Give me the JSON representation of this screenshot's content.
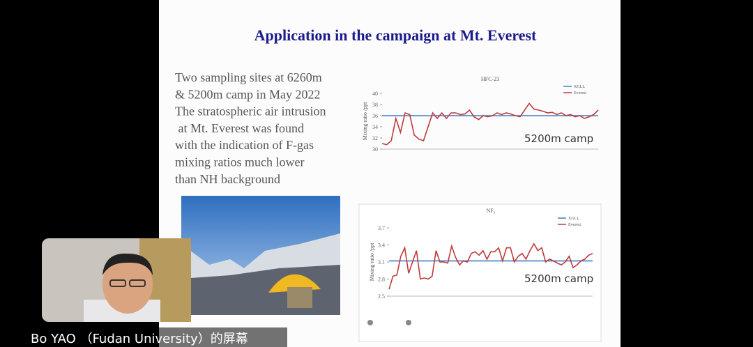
{
  "slide": {
    "title": "Application in the campaign at Mt. Everest",
    "body": [
      "Two sampling sites at 6260m",
      "& 5200m camp in May 2022",
      "The stratospheric air intrusion",
      " at Mt. Everest was found",
      "with the indication of F-gas",
      "mixing ratios much lower",
      "than NH background"
    ]
  },
  "chart_data": [
    {
      "type": "line",
      "title": "HFC-23",
      "ylabel": "Mixing ratio /ppt",
      "annotation": "5200m camp",
      "ylim": [
        30,
        40
      ],
      "yticks": [
        30,
        32,
        34,
        36,
        38,
        40
      ],
      "series": [
        {
          "name": "XGLL",
          "color": "#3b7fc4",
          "values": [
            36,
            36,
            36,
            36,
            36,
            36,
            36,
            36,
            36,
            36,
            36,
            36,
            36,
            36,
            36,
            36,
            36,
            36,
            36,
            36,
            36,
            36,
            36,
            36,
            36,
            36,
            36,
            36,
            36,
            36,
            36,
            36,
            36,
            36,
            36,
            36,
            36,
            36,
            36,
            36,
            36,
            36,
            36,
            36,
            36,
            36,
            36,
            36
          ]
        },
        {
          "name": "Everest",
          "color": "#c0393b",
          "values": [
            31,
            30.8,
            31.5,
            35.5,
            33,
            36.5,
            36.2,
            32.5,
            31.8,
            31.5,
            34,
            36.5,
            35.5,
            36.5,
            35.5,
            36.5,
            36.5,
            36.2,
            36.3,
            37,
            35.8,
            35.3,
            36,
            35.8,
            36,
            36.5,
            36.2,
            36.5,
            36.3,
            36,
            35.8,
            37,
            38.2,
            37.2,
            37,
            36.8,
            36.5,
            36.6,
            36.2,
            36.5,
            36,
            36.2,
            35.8,
            36,
            35.5,
            35.8,
            36.2,
            37
          ]
        }
      ]
    },
    {
      "type": "line",
      "title": "NF₃",
      "ylabel": "Mixing ratio /ppt",
      "annotation": "5200m camp",
      "ylim": [
        2.5,
        3.7
      ],
      "yticks": [
        2.5,
        2.8,
        3.1,
        3.4,
        3.7
      ],
      "series": [
        {
          "name": "XGLL",
          "color": "#3b7fc4",
          "values": [
            3.12,
            3.12,
            3.12,
            3.12,
            3.12,
            3.12,
            3.12,
            3.12,
            3.12,
            3.12,
            3.12,
            3.12,
            3.12,
            3.12,
            3.12,
            3.12,
            3.12,
            3.12,
            3.12,
            3.12,
            3.12,
            3.12,
            3.12,
            3.12,
            3.12,
            3.12,
            3.12,
            3.12,
            3.12,
            3.12,
            3.12,
            3.12,
            3.12,
            3.12,
            3.12,
            3.12,
            3.12,
            3.12,
            3.12,
            3.12,
            3.12,
            3.12,
            3.12,
            3.12,
            3.12,
            3.12,
            3.12,
            3.12,
            3.12,
            3.12,
            3.12,
            3.12,
            3.12
          ]
        },
        {
          "name": "Everest",
          "color": "#c0393b",
          "values": [
            2.62,
            2.85,
            2.87,
            3.2,
            3.35,
            2.9,
            3.1,
            3.3,
            2.8,
            2.82,
            2.8,
            2.85,
            3.3,
            3.1,
            3.1,
            3.08,
            3.38,
            3.18,
            3.05,
            3.12,
            3.1,
            3.25,
            3.28,
            3.22,
            3.3,
            3.15,
            3.28,
            3.28,
            3.35,
            3.12,
            3.35,
            3.35,
            3.1,
            3.2,
            3.25,
            3.15,
            3.3,
            3.42,
            3.3,
            3.35,
            3.1,
            3.15,
            3.12,
            3.08,
            3.05,
            3.1,
            3.2,
            3.0,
            3.05,
            3.12,
            3.15,
            3.22,
            3.25
          ]
        }
      ]
    }
  ],
  "caption": "Bo YAO （Fudan University）的屏幕"
}
